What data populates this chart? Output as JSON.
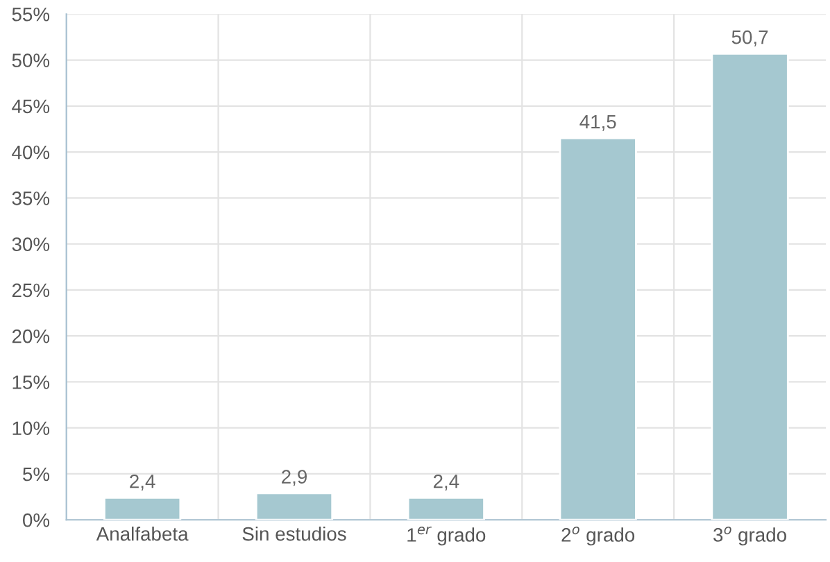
{
  "chart_data": {
    "type": "bar",
    "categories": [
      "Analfabeta",
      "Sin estudios",
      "1$^{er}$ grado",
      "2$^{o}$ grado",
      "3$^{o}$ grado"
    ],
    "values": [
      2.4,
      2.9,
      2.4,
      41.5,
      50.7
    ],
    "value_labels": [
      "2,4",
      "2,9",
      "2,4",
      "41,5",
      "50,7"
    ],
    "color": "#a5c8d0",
    "ylim": [
      0,
      55
    ],
    "yticks": [
      {
        "value": 0,
        "label": "0%"
      },
      {
        "value": 5,
        "label": "5%"
      },
      {
        "value": 10,
        "label": "10%"
      },
      {
        "value": 15,
        "label": "15%"
      },
      {
        "value": 20,
        "label": "20%"
      },
      {
        "value": 25,
        "label": "25%"
      },
      {
        "value": 30,
        "label": "30%"
      },
      {
        "value": 35,
        "label": "35%"
      },
      {
        "value": 40,
        "label": "40%"
      },
      {
        "value": 45,
        "label": "45%"
      },
      {
        "value": 50,
        "label": "50%"
      },
      {
        "value": 55,
        "label": "55%"
      }
    ],
    "grid": true,
    "legend": false
  }
}
